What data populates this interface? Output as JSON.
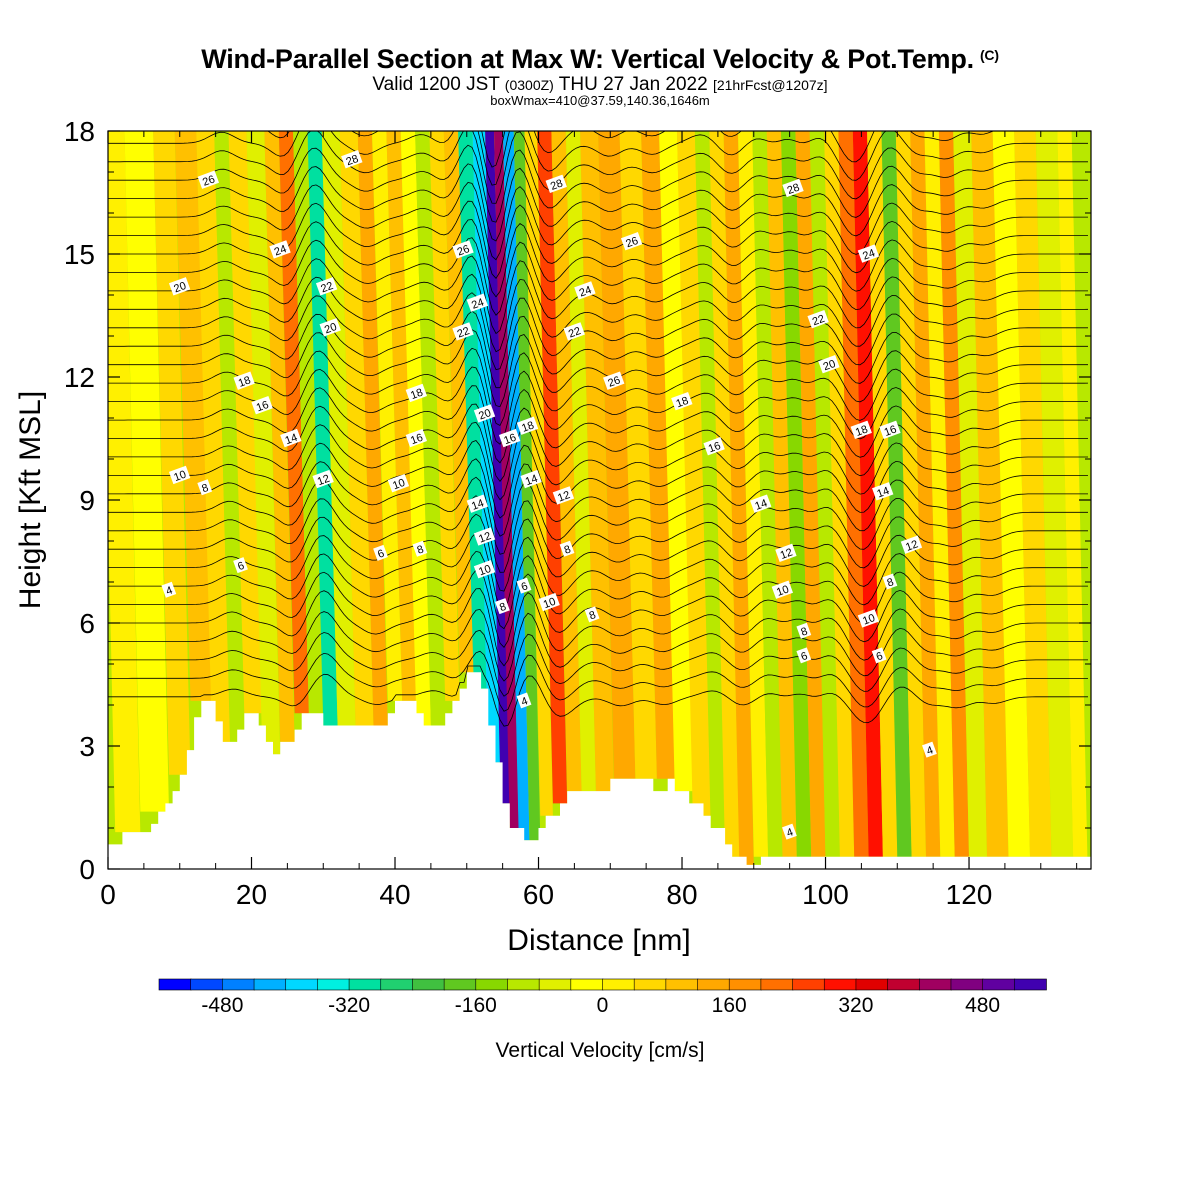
{
  "chart_data": {
    "type": "heatmap",
    "title": "Wind-Parallel Section at Max W: Vertical Velocity & Pot.Temp.",
    "copyright": "(C)",
    "subtitle": {
      "valid_prefix": "Valid 1200 JST",
      "utc": "(0300Z)",
      "date": "THU 27 Jan 2022",
      "forecast": "[21hrFcst@1207z]"
    },
    "box_info": "boxWmax=410@37.59,140.36,1646m",
    "xlabel": "Distance [nm]",
    "ylabel": "Height [Kft MSL]",
    "xlim": [
      0,
      137
    ],
    "ylim": [
      0,
      18
    ],
    "x_ticks": [
      0,
      20,
      40,
      60,
      80,
      100,
      120
    ],
    "y_ticks": [
      0,
      3,
      6,
      9,
      12,
      15,
      18
    ],
    "colorbar": {
      "label": "Vertical Velocity [cm/s]",
      "tick_labels": [
        -480,
        -320,
        -160,
        0,
        160,
        320,
        480
      ],
      "min": -560,
      "max": 560,
      "step": 40,
      "colors": [
        "#0000ff",
        "#0048ff",
        "#0080ff",
        "#00b0ff",
        "#00d8ff",
        "#00f0e0",
        "#00e0a0",
        "#20d070",
        "#40c040",
        "#60c820",
        "#88d800",
        "#b8e800",
        "#e0f000",
        "#ffff00",
        "#fff000",
        "#ffd800",
        "#ffc000",
        "#ffa800",
        "#ff9000",
        "#ff7000",
        "#ff4000",
        "#ff1000",
        "#e00000",
        "#c00030",
        "#a00060",
        "#800080",
        "#6000a0",
        "#4000b0"
      ]
    },
    "w_columns_cm_s": [
      {
        "x": 2,
        "w": 20
      },
      {
        "x": 7,
        "w": -20
      },
      {
        "x": 10,
        "w": 40
      },
      {
        "x": 13,
        "w": 80
      },
      {
        "x": 16,
        "w": 40
      },
      {
        "x": 18,
        "w": -120
      },
      {
        "x": 20,
        "w": 60
      },
      {
        "x": 23,
        "w": -80
      },
      {
        "x": 25,
        "w": 80
      },
      {
        "x": 27,
        "w": 200
      },
      {
        "x": 29,
        "w": -120
      },
      {
        "x": 31,
        "w": -300
      },
      {
        "x": 33,
        "w": -60
      },
      {
        "x": 36,
        "w": 60
      },
      {
        "x": 38,
        "w": 120
      },
      {
        "x": 40,
        "w": 20
      },
      {
        "x": 42,
        "w": 80
      },
      {
        "x": 44,
        "w": -40
      },
      {
        "x": 46,
        "w": -100
      },
      {
        "x": 48,
        "w": 40
      },
      {
        "x": 50,
        "w": 100
      },
      {
        "x": 52,
        "w": -300
      },
      {
        "x": 54,
        "w": -400
      },
      {
        "x": 55.5,
        "w": 560
      },
      {
        "x": 56.5,
        "w": 410
      },
      {
        "x": 58,
        "w": -420
      },
      {
        "x": 59.5,
        "w": -200
      },
      {
        "x": 61,
        "w": 60
      },
      {
        "x": 63,
        "w": 260
      },
      {
        "x": 65,
        "w": 100
      },
      {
        "x": 67,
        "w": -80
      },
      {
        "x": 69,
        "w": 80
      },
      {
        "x": 72,
        "w": 140
      },
      {
        "x": 75,
        "w": 40
      },
      {
        "x": 78,
        "w": 120
      },
      {
        "x": 80,
        "w": -20
      },
      {
        "x": 83,
        "w": 60
      },
      {
        "x": 85,
        "w": -100
      },
      {
        "x": 87,
        "w": 40
      },
      {
        "x": 89,
        "w": 140
      },
      {
        "x": 91,
        "w": 20
      },
      {
        "x": 93,
        "w": -100
      },
      {
        "x": 95,
        "w": 100
      },
      {
        "x": 97,
        "w": -140
      },
      {
        "x": 99,
        "w": 120
      },
      {
        "x": 101,
        "w": -120
      },
      {
        "x": 103,
        "w": 40
      },
      {
        "x": 105,
        "w": 200
      },
      {
        "x": 107,
        "w": 280
      },
      {
        "x": 109,
        "w": 60
      },
      {
        "x": 111,
        "w": -180
      },
      {
        "x": 113,
        "w": 60
      },
      {
        "x": 115,
        "w": 120
      },
      {
        "x": 117,
        "w": 20
      },
      {
        "x": 119,
        "w": 160
      },
      {
        "x": 121,
        "w": -80
      },
      {
        "x": 124,
        "w": 100
      },
      {
        "x": 127,
        "w": -40
      },
      {
        "x": 130,
        "w": 40
      },
      {
        "x": 133,
        "w": -60
      },
      {
        "x": 136,
        "w": 20
      }
    ],
    "terrain_kft": [
      [
        0,
        0.6
      ],
      [
        2,
        0.6
      ],
      [
        2,
        0.9
      ],
      [
        6,
        0.9
      ],
      [
        6,
        1.1
      ],
      [
        7,
        1.1
      ],
      [
        7,
        1.4
      ],
      [
        8,
        1.4
      ],
      [
        8,
        1.6
      ],
      [
        9,
        1.6
      ],
      [
        9,
        1.9
      ],
      [
        10,
        1.9
      ],
      [
        10,
        2.3
      ],
      [
        11,
        2.3
      ],
      [
        11,
        2.9
      ],
      [
        12,
        2.9
      ],
      [
        12,
        3.7
      ],
      [
        13,
        3.7
      ],
      [
        13,
        4.1
      ],
      [
        15,
        4.1
      ],
      [
        15,
        3.6
      ],
      [
        16,
        3.6
      ],
      [
        16,
        3.1
      ],
      [
        18,
        3.1
      ],
      [
        18,
        3.4
      ],
      [
        19,
        3.4
      ],
      [
        19,
        3.8
      ],
      [
        21,
        3.8
      ],
      [
        21,
        3.5
      ],
      [
        22,
        3.5
      ],
      [
        22,
        3.1
      ],
      [
        23,
        3.1
      ],
      [
        23,
        2.8
      ],
      [
        24,
        2.8
      ],
      [
        24,
        3.1
      ],
      [
        26,
        3.1
      ],
      [
        26,
        3.4
      ],
      [
        27,
        3.4
      ],
      [
        27,
        3.8
      ],
      [
        30,
        3.8
      ],
      [
        30,
        3.5
      ],
      [
        39,
        3.5
      ],
      [
        39,
        3.8
      ],
      [
        40,
        3.8
      ],
      [
        40,
        4.1
      ],
      [
        43,
        4.1
      ],
      [
        43,
        3.8
      ],
      [
        44,
        3.8
      ],
      [
        44,
        3.5
      ],
      [
        47,
        3.5
      ],
      [
        47,
        3.8
      ],
      [
        48,
        3.8
      ],
      [
        48,
        4.1
      ],
      [
        49,
        4.1
      ],
      [
        49,
        4.4
      ],
      [
        50,
        4.4
      ],
      [
        50,
        4.8
      ],
      [
        52,
        4.8
      ],
      [
        52,
        4.4
      ],
      [
        53,
        4.4
      ],
      [
        53,
        3.5
      ],
      [
        54,
        3.5
      ],
      [
        54,
        2.6
      ],
      [
        55,
        2.6
      ],
      [
        55,
        1.6
      ],
      [
        56,
        1.6
      ],
      [
        56,
        1.0
      ],
      [
        58,
        1.0
      ],
      [
        58,
        0.7
      ],
      [
        60,
        0.7
      ],
      [
        60,
        1.0
      ],
      [
        61,
        1.0
      ],
      [
        61,
        1.3
      ],
      [
        63,
        1.3
      ],
      [
        63,
        1.6
      ],
      [
        64,
        1.6
      ],
      [
        64,
        1.9
      ],
      [
        70,
        1.9
      ],
      [
        70,
        2.2
      ],
      [
        76,
        2.2
      ],
      [
        76,
        1.9
      ],
      [
        78,
        1.9
      ],
      [
        78,
        2.2
      ],
      [
        79,
        2.2
      ],
      [
        79,
        1.9
      ],
      [
        81,
        1.9
      ],
      [
        81,
        1.6
      ],
      [
        83,
        1.6
      ],
      [
        83,
        1.3
      ],
      [
        84,
        1.3
      ],
      [
        84,
        1.0
      ],
      [
        86,
        1.0
      ],
      [
        86,
        0.6
      ],
      [
        87,
        0.6
      ],
      [
        87,
        0.3
      ],
      [
        89,
        0.3
      ],
      [
        89,
        0.1
      ],
      [
        91,
        0.1
      ],
      [
        91,
        0.3
      ],
      [
        137,
        0.3
      ]
    ],
    "theta_contour_labels": [
      {
        "label": "4",
        "x": 8.5,
        "y": 6.8
      },
      {
        "label": "6",
        "x": 18.5,
        "y": 7.4
      },
      {
        "label": "8",
        "x": 13.5,
        "y": 9.3
      },
      {
        "label": "10",
        "x": 10,
        "y": 9.6
      },
      {
        "label": "16",
        "x": 21.5,
        "y": 11.3
      },
      {
        "label": "18",
        "x": 19,
        "y": 11.9
      },
      {
        "label": "20",
        "x": 10,
        "y": 14.2
      },
      {
        "label": "24",
        "x": 24,
        "y": 15.1
      },
      {
        "label": "26",
        "x": 14,
        "y": 16.8
      },
      {
        "label": "28",
        "x": 34,
        "y": 17.3
      },
      {
        "label": "14",
        "x": 25.5,
        "y": 10.5
      },
      {
        "label": "12",
        "x": 30,
        "y": 9.5
      },
      {
        "label": "22",
        "x": 30.5,
        "y": 14.2
      },
      {
        "label": "20",
        "x": 31,
        "y": 13.2
      },
      {
        "label": "6",
        "x": 38,
        "y": 7.7
      },
      {
        "label": "10",
        "x": 40.5,
        "y": 9.4
      },
      {
        "label": "8",
        "x": 43.5,
        "y": 7.8
      },
      {
        "label": "16",
        "x": 43,
        "y": 10.5
      },
      {
        "label": "18",
        "x": 43,
        "y": 11.6
      },
      {
        "label": "26",
        "x": 49.5,
        "y": 15.1
      },
      {
        "label": "24",
        "x": 51.5,
        "y": 13.8
      },
      {
        "label": "22",
        "x": 49.5,
        "y": 13.1
      },
      {
        "label": "20",
        "x": 52.5,
        "y": 11.1
      },
      {
        "label": "14",
        "x": 51.5,
        "y": 8.9
      },
      {
        "label": "12",
        "x": 52.5,
        "y": 8.1
      },
      {
        "label": "10",
        "x": 52.5,
        "y": 7.3
      },
      {
        "label": "8",
        "x": 55,
        "y": 6.4
      },
      {
        "label": "16",
        "x": 56,
        "y": 10.5
      },
      {
        "label": "18",
        "x": 58.5,
        "y": 10.8
      },
      {
        "label": "14",
        "x": 59,
        "y": 9.5
      },
      {
        "label": "6",
        "x": 58,
        "y": 6.9
      },
      {
        "label": "4",
        "x": 58,
        "y": 4.1
      },
      {
        "label": "10",
        "x": 61.5,
        "y": 6.5
      },
      {
        "label": "12",
        "x": 63.5,
        "y": 9.1
      },
      {
        "label": "8",
        "x": 64,
        "y": 7.8
      },
      {
        "label": "8",
        "x": 67.5,
        "y": 6.2
      },
      {
        "label": "22",
        "x": 65,
        "y": 13.1
      },
      {
        "label": "24",
        "x": 66.5,
        "y": 14.1
      },
      {
        "label": "28",
        "x": 62.5,
        "y": 16.7
      },
      {
        "label": "26",
        "x": 73,
        "y": 15.3
      },
      {
        "label": "26",
        "x": 70.5,
        "y": 11.9
      },
      {
        "label": "18",
        "x": 80,
        "y": 11.4
      },
      {
        "label": "16",
        "x": 84.5,
        "y": 10.3
      },
      {
        "label": "14",
        "x": 91,
        "y": 8.9
      },
      {
        "label": "12",
        "x": 94.5,
        "y": 7.7
      },
      {
        "label": "10",
        "x": 94,
        "y": 6.8
      },
      {
        "label": "8",
        "x": 97,
        "y": 5.8
      },
      {
        "label": "6",
        "x": 97,
        "y": 5.2
      },
      {
        "label": "4",
        "x": 95,
        "y": 0.9
      },
      {
        "label": "28",
        "x": 95.5,
        "y": 16.6
      },
      {
        "label": "22",
        "x": 99,
        "y": 13.4
      },
      {
        "label": "20",
        "x": 100.5,
        "y": 12.3
      },
      {
        "label": "24",
        "x": 106,
        "y": 15.0
      },
      {
        "label": "18",
        "x": 105,
        "y": 10.7
      },
      {
        "label": "16",
        "x": 109,
        "y": 10.7
      },
      {
        "label": "14",
        "x": 108,
        "y": 9.2
      },
      {
        "label": "12",
        "x": 112,
        "y": 7.9
      },
      {
        "label": "8",
        "x": 109,
        "y": 7.0
      },
      {
        "label": "10",
        "x": 106,
        "y": 6.1
      },
      {
        "label": "6",
        "x": 107.5,
        "y": 5.2
      },
      {
        "label": "4",
        "x": 114.5,
        "y": 2.9
      }
    ]
  }
}
